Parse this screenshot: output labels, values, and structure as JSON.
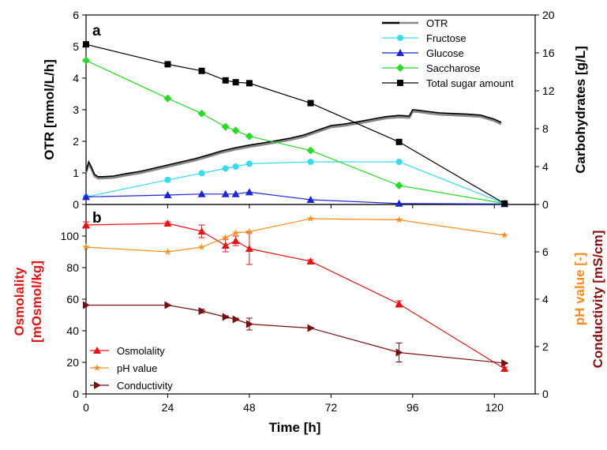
{
  "chart_data": [
    {
      "panel_label": "a",
      "type": "line",
      "x_range": [
        0,
        132
      ],
      "x_ticks": [
        "0",
        "24",
        "48",
        "72",
        "96",
        "120"
      ],
      "y_left": {
        "label": "OTR   [mmol/L/h]",
        "range": [
          0,
          6
        ],
        "ticks": [
          "0",
          "1",
          "2",
          "3",
          "4",
          "5",
          "6"
        ]
      },
      "y_right": {
        "label": "Carbohydrates   [g/L]",
        "range": [
          0,
          20
        ],
        "ticks": [
          "0",
          "4",
          "8",
          "12",
          "16",
          "20"
        ]
      },
      "legend_position": "top-right",
      "series": [
        {
          "name": "OTR",
          "axis": "left",
          "color": "#000000",
          "color2": "#888888",
          "marker": "none",
          "x": [
            0,
            0.8,
            1.5,
            2.5,
            3.5,
            5,
            8,
            12,
            16,
            20,
            24,
            28,
            32,
            36,
            40,
            44,
            48,
            52,
            56,
            60,
            64,
            68,
            72,
            76,
            80,
            84,
            88,
            92,
            95,
            96,
            98,
            100,
            104,
            108,
            112,
            116,
            120,
            122
          ],
          "y": [
            1.05,
            1.35,
            1.2,
            0.95,
            0.88,
            0.88,
            0.9,
            0.98,
            1.05,
            1.15,
            1.25,
            1.35,
            1.45,
            1.57,
            1.7,
            1.8,
            1.88,
            1.95,
            2.02,
            2.1,
            2.2,
            2.35,
            2.5,
            2.55,
            2.62,
            2.7,
            2.78,
            2.82,
            2.8,
            3.0,
            2.98,
            2.95,
            2.9,
            2.88,
            2.86,
            2.83,
            2.7,
            2.6
          ]
        },
        {
          "name": "Fructose",
          "axis": "right",
          "color": "#33ddee",
          "marker": "circle",
          "x": [
            0,
            24,
            34,
            41,
            44,
            48,
            66,
            92,
            123
          ],
          "y": [
            0.8,
            2.6,
            3.3,
            3.8,
            4.0,
            4.3,
            4.5,
            4.5,
            0.1
          ]
        },
        {
          "name": "Glucose",
          "axis": "right",
          "color": "#1a24dd",
          "marker": "triangle",
          "x": [
            0,
            24,
            34,
            41,
            44,
            48,
            66,
            92,
            123
          ],
          "y": [
            0.8,
            1.0,
            1.1,
            1.1,
            1.1,
            1.3,
            0.5,
            0.1,
            0.05
          ]
        },
        {
          "name": "Saccharose",
          "axis": "right",
          "color": "#22dd22",
          "marker": "diamond",
          "x": [
            0,
            24,
            34,
            41,
            44,
            48,
            66,
            92,
            123
          ],
          "y": [
            15.2,
            11.2,
            9.6,
            8.2,
            7.8,
            7.2,
            5.7,
            2.0,
            0.1
          ]
        },
        {
          "name": "Total sugar amount",
          "axis": "right",
          "color": "#000000",
          "marker": "square",
          "x": [
            0,
            24,
            34,
            41,
            44,
            48,
            66,
            92,
            123
          ],
          "y": [
            16.9,
            14.8,
            14.1,
            13.1,
            12.9,
            12.8,
            10.7,
            6.6,
            0.1
          ]
        }
      ]
    },
    {
      "panel_label": "b",
      "type": "line",
      "x_label": "Time    [h]",
      "x_range": [
        0,
        132
      ],
      "x_ticks": [
        "0",
        "24",
        "48",
        "72",
        "96",
        "120"
      ],
      "y_left": {
        "label_line1": "Osmolality",
        "label_line2": "[mOsmol/kg]",
        "range": [
          0,
          120
        ],
        "ticks": [
          "0",
          "20",
          "40",
          "60",
          "80",
          "100"
        ]
      },
      "y_right_outer": {
        "label": "Conductivity   [mS/cm]",
        "color": "#8b1010"
      },
      "y_right_inner": {
        "label": "pH value   [-]",
        "color": "#ff8c1a"
      },
      "y_right": {
        "range": [
          0,
          8
        ],
        "ticks": [
          "0",
          "2",
          "4",
          "6"
        ]
      },
      "legend_position": "bottom-left",
      "series": [
        {
          "name": "Osmolality",
          "axis": "left",
          "color": "#ee1111",
          "marker": "triangle",
          "x": [
            0,
            24,
            34,
            41,
            44,
            48,
            66,
            92,
            123
          ],
          "y": [
            107,
            108,
            103,
            94,
            97,
            92,
            84,
            57,
            16
          ],
          "err": [
            2,
            1,
            4,
            4,
            3,
            10,
            1,
            2,
            1
          ]
        },
        {
          "name": "pH value",
          "axis": "right",
          "color": "#ff8c1a",
          "marker": "star",
          "x": [
            0,
            24,
            34,
            41,
            44,
            48,
            66,
            92,
            123
          ],
          "y": [
            6.2,
            6.0,
            6.2,
            6.6,
            6.8,
            6.85,
            7.4,
            7.35,
            6.7
          ]
        },
        {
          "name": "Conductivity",
          "axis": "right",
          "color": "#7a0f0f",
          "marker": "triangle-right",
          "x": [
            0,
            24,
            34,
            41,
            44,
            48,
            66,
            92,
            123
          ],
          "y": [
            3.75,
            3.75,
            3.5,
            3.25,
            3.15,
            2.95,
            2.78,
            1.75,
            1.3
          ],
          "err": [
            0,
            0,
            0.08,
            0.05,
            0.05,
            0.25,
            0.03,
            0.4,
            0.02
          ]
        }
      ]
    }
  ]
}
